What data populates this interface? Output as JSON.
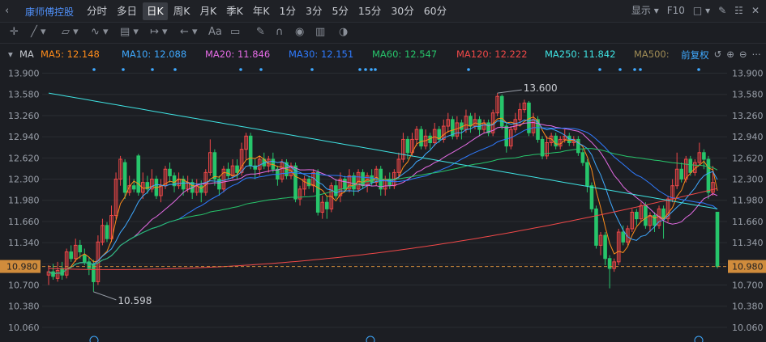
{
  "topbar": {
    "back_icon": "back-arrow-icon",
    "stock_name": "康师傅控股",
    "tabs": [
      "分时",
      "多日",
      "日K",
      "周K",
      "月K",
      "季K",
      "年K",
      "1分",
      "3分",
      "5分",
      "15分",
      "30分",
      "60分"
    ],
    "active_tab": 2,
    "display_label": "显示",
    "f10_label": "F10"
  },
  "ma_legend": {
    "title": "MA",
    "items": [
      {
        "label": "MA5: 12.148",
        "color": "#ff8c1a"
      },
      {
        "label": "MA10: 12.088",
        "color": "#3fa9ff"
      },
      {
        "label": "MA20: 11.846",
        "color": "#e66ce6"
      },
      {
        "label": "MA30: 12.151",
        "color": "#2f7bff"
      },
      {
        "label": "MA60: 12.547",
        "color": "#27c56b"
      },
      {
        "label": "MA120: 12.222",
        "color": "#f04848"
      },
      {
        "label": "MA250: 11.842",
        "color": "#3fe3e3"
      },
      {
        "label": "MA500:",
        "color": "#a08c55"
      }
    ],
    "adjust_label": "前复权"
  },
  "colors": {
    "up": "#f04848",
    "down": "#27c56b",
    "grid": "#2a2d33",
    "axis_text": "#9aa0aa",
    "price_line": "#d08c3c"
  },
  "chart_data": {
    "type": "candlestick",
    "ylim": [
      9.9,
      13.98
    ],
    "y_ticks": [
      "13.900",
      "13.580",
      "13.260",
      "12.940",
      "12.620",
      "12.300",
      "11.980",
      "11.660",
      "11.340",
      "11.020",
      "10.700",
      "10.380",
      "10.060"
    ],
    "y_tick_values": [
      13.9,
      13.58,
      13.26,
      12.94,
      12.62,
      12.3,
      11.98,
      11.66,
      11.34,
      11.02,
      10.7,
      10.38,
      10.06
    ],
    "current_price": "10.980",
    "current_price_value": 10.98,
    "annotations": [
      {
        "text": "13.600",
        "value": 13.6,
        "kind": "high",
        "candle_index": 100
      },
      {
        "text": "10.598",
        "value": 10.598,
        "kind": "low",
        "candle_index": 10
      }
    ],
    "candles": [
      [
        10.85,
        10.9,
        11.0,
        10.7
      ],
      [
        10.9,
        10.83,
        11.02,
        10.78
      ],
      [
        10.8,
        10.92,
        11.05,
        10.75
      ],
      [
        10.95,
        10.85,
        11.05,
        10.78
      ],
      [
        10.85,
        11.2,
        11.25,
        10.8
      ],
      [
        11.2,
        11.1,
        11.3,
        11.05
      ],
      [
        11.1,
        11.3,
        11.4,
        11.05
      ],
      [
        11.3,
        11.2,
        11.38,
        11.1
      ],
      [
        11.15,
        11.05,
        11.25,
        11.0
      ],
      [
        11.05,
        10.95,
        11.12,
        10.85
      ],
      [
        11.0,
        10.75,
        11.08,
        10.6
      ],
      [
        10.75,
        11.35,
        11.45,
        10.7
      ],
      [
        11.35,
        11.6,
        11.7,
        11.3
      ],
      [
        11.6,
        11.4,
        11.65,
        11.35
      ],
      [
        11.4,
        11.75,
        11.9,
        11.35
      ],
      [
        11.75,
        12.3,
        12.4,
        11.7
      ],
      [
        12.3,
        12.6,
        12.65,
        12.2
      ],
      [
        12.55,
        12.1,
        12.6,
        12.0
      ],
      [
        12.1,
        12.2,
        12.35,
        12.05
      ],
      [
        12.2,
        12.15,
        12.3,
        12.1
      ],
      [
        12.65,
        12.1,
        12.68,
        12.05
      ],
      [
        12.1,
        12.25,
        12.4,
        12.0
      ],
      [
        12.25,
        12.15,
        12.35,
        12.08
      ],
      [
        12.15,
        12.3,
        12.45,
        12.1
      ],
      [
        12.3,
        12.05,
        12.35,
        12.0
      ],
      [
        12.05,
        12.2,
        12.3,
        11.95
      ],
      [
        12.2,
        12.45,
        12.5,
        12.15
      ],
      [
        12.45,
        12.35,
        12.55,
        12.25
      ],
      [
        12.35,
        12.2,
        12.4,
        12.1
      ],
      [
        12.2,
        12.3,
        12.4,
        12.15
      ],
      [
        12.3,
        12.15,
        12.35,
        12.05
      ],
      [
        12.15,
        12.25,
        12.35,
        12.1
      ],
      [
        12.25,
        12.1,
        12.3,
        12.0
      ],
      [
        12.1,
        12.2,
        12.3,
        12.05
      ],
      [
        12.2,
        12.1,
        12.28,
        11.95
      ],
      [
        12.1,
        12.4,
        12.45,
        12.05
      ],
      [
        12.4,
        12.7,
        12.9,
        12.35
      ],
      [
        12.7,
        12.3,
        12.75,
        12.2
      ],
      [
        12.3,
        12.15,
        12.35,
        12.05
      ],
      [
        12.15,
        12.45,
        12.5,
        12.1
      ],
      [
        12.45,
        12.35,
        12.55,
        12.3
      ],
      [
        12.35,
        12.5,
        12.6,
        12.3
      ],
      [
        12.5,
        12.4,
        12.6,
        12.3
      ],
      [
        12.4,
        12.75,
        12.85,
        12.35
      ],
      [
        12.75,
        12.95,
        13.0,
        12.6
      ],
      [
        12.95,
        12.5,
        13.0,
        12.45
      ],
      [
        12.5,
        12.45,
        12.6,
        12.3
      ],
      [
        12.45,
        12.6,
        12.65,
        12.35
      ],
      [
        12.6,
        12.5,
        12.7,
        12.45
      ],
      [
        12.5,
        12.6,
        12.65,
        12.4
      ],
      [
        12.6,
        12.45,
        12.7,
        12.4
      ],
      [
        12.45,
        12.3,
        12.5,
        12.2
      ],
      [
        12.3,
        12.55,
        12.6,
        12.25
      ],
      [
        12.55,
        12.35,
        12.6,
        12.3
      ],
      [
        12.35,
        12.5,
        12.55,
        12.3
      ],
      [
        12.5,
        12.0,
        12.55,
        11.95
      ],
      [
        12.0,
        12.15,
        12.2,
        11.9
      ],
      [
        12.15,
        12.3,
        12.35,
        12.05
      ],
      [
        12.3,
        12.2,
        12.35,
        12.15
      ],
      [
        12.2,
        12.4,
        12.45,
        12.1
      ],
      [
        12.4,
        11.8,
        12.45,
        11.75
      ],
      [
        11.8,
        11.95,
        12.05,
        11.7
      ],
      [
        11.95,
        11.85,
        12.05,
        11.7
      ],
      [
        11.85,
        12.2,
        12.25,
        11.8
      ],
      [
        12.2,
        12.05,
        12.3,
        12.0
      ],
      [
        12.05,
        12.3,
        12.4,
        11.95
      ],
      [
        12.3,
        12.15,
        12.35,
        12.1
      ],
      [
        12.15,
        12.35,
        12.45,
        12.1
      ],
      [
        12.35,
        12.15,
        12.4,
        12.05
      ],
      [
        12.15,
        12.4,
        12.45,
        12.1
      ],
      [
        12.4,
        12.2,
        12.45,
        12.15
      ],
      [
        12.2,
        12.35,
        12.4,
        12.1
      ],
      [
        12.35,
        12.25,
        12.45,
        12.2
      ],
      [
        12.25,
        12.45,
        12.5,
        12.2
      ],
      [
        12.45,
        12.15,
        12.5,
        12.05
      ],
      [
        12.15,
        12.3,
        12.35,
        12.05
      ],
      [
        12.3,
        12.2,
        12.4,
        12.15
      ],
      [
        12.2,
        12.4,
        12.45,
        12.15
      ],
      [
        12.4,
        12.6,
        12.7,
        12.3
      ],
      [
        12.6,
        12.9,
        13.0,
        12.55
      ],
      [
        12.9,
        12.7,
        12.95,
        12.6
      ],
      [
        12.7,
        12.9,
        13.0,
        12.65
      ],
      [
        12.9,
        13.05,
        13.1,
        12.8
      ],
      [
        13.05,
        12.8,
        13.1,
        12.75
      ],
      [
        12.8,
        12.95,
        13.05,
        12.75
      ],
      [
        12.95,
        12.85,
        13.0,
        12.75
      ],
      [
        12.85,
        13.05,
        13.15,
        12.8
      ],
      [
        13.05,
        12.9,
        13.1,
        12.85
      ],
      [
        12.9,
        13.1,
        13.2,
        12.85
      ],
      [
        13.1,
        13.2,
        13.3,
        13.0
      ],
      [
        13.2,
        12.95,
        13.25,
        12.9
      ],
      [
        12.95,
        13.15,
        13.25,
        12.9
      ],
      [
        13.15,
        13.05,
        13.2,
        12.9
      ],
      [
        13.05,
        13.25,
        13.35,
        13.0
      ],
      [
        13.25,
        13.1,
        13.3,
        13.0
      ],
      [
        13.1,
        13.2,
        13.3,
        13.05
      ],
      [
        13.2,
        13.05,
        13.25,
        12.95
      ],
      [
        13.05,
        13.15,
        13.2,
        13.0
      ],
      [
        13.15,
        13.0,
        13.2,
        12.95
      ],
      [
        13.0,
        13.3,
        13.35,
        12.95
      ],
      [
        13.3,
        13.55,
        13.6,
        13.25
      ],
      [
        13.55,
        13.1,
        13.58,
        13.05
      ],
      [
        13.1,
        12.8,
        13.15,
        12.7
      ],
      [
        12.8,
        13.05,
        13.1,
        12.75
      ],
      [
        13.05,
        13.2,
        13.3,
        13.0
      ],
      [
        13.2,
        13.35,
        13.45,
        13.15
      ],
      [
        13.35,
        13.45,
        13.5,
        13.3
      ],
      [
        13.45,
        13.0,
        13.48,
        12.95
      ],
      [
        13.0,
        13.2,
        13.3,
        12.95
      ],
      [
        13.2,
        12.9,
        13.25,
        12.85
      ],
      [
        12.9,
        12.65,
        12.95,
        12.6
      ],
      [
        12.65,
        12.85,
        12.95,
        12.6
      ],
      [
        12.85,
        12.95,
        13.0,
        12.8
      ],
      [
        12.95,
        12.8,
        13.0,
        12.75
      ],
      [
        12.8,
        12.9,
        12.95,
        12.75
      ],
      [
        12.9,
        12.95,
        13.05,
        12.85
      ],
      [
        12.95,
        12.85,
        13.0,
        12.8
      ],
      [
        12.85,
        12.9,
        12.95,
        12.8
      ],
      [
        12.9,
        12.7,
        12.95,
        12.65
      ],
      [
        12.7,
        12.55,
        12.75,
        12.5
      ],
      [
        12.55,
        12.2,
        12.6,
        12.1
      ],
      [
        12.2,
        11.85,
        12.25,
        11.8
      ],
      [
        11.85,
        11.3,
        11.9,
        11.25
      ],
      [
        11.3,
        11.45,
        11.5,
        11.15
      ],
      [
        11.45,
        11.1,
        11.5,
        11.0
      ],
      [
        11.1,
        10.95,
        11.15,
        10.65
      ],
      [
        10.95,
        11.05,
        11.1,
        10.9
      ],
      [
        11.05,
        11.5,
        11.55,
        11.0
      ],
      [
        11.5,
        11.35,
        11.6,
        11.3
      ],
      [
        11.35,
        11.55,
        11.6,
        11.3
      ],
      [
        11.55,
        11.8,
        11.85,
        11.5
      ],
      [
        11.8,
        11.7,
        11.85,
        11.6
      ],
      [
        11.7,
        11.9,
        11.95,
        11.65
      ],
      [
        11.9,
        11.6,
        11.95,
        11.55
      ],
      [
        11.6,
        11.75,
        11.8,
        11.5
      ],
      [
        11.75,
        11.6,
        11.8,
        11.5
      ],
      [
        11.6,
        11.85,
        11.9,
        11.55
      ],
      [
        11.85,
        11.7,
        11.9,
        11.4
      ],
      [
        11.7,
        12.0,
        12.05,
        11.65
      ],
      [
        12.0,
        12.2,
        12.3,
        11.95
      ],
      [
        12.2,
        12.45,
        12.7,
        12.15
      ],
      [
        12.45,
        12.3,
        12.55,
        12.25
      ],
      [
        12.3,
        12.6,
        12.65,
        12.25
      ],
      [
        12.6,
        12.4,
        12.65,
        12.35
      ],
      [
        12.4,
        12.55,
        12.6,
        12.35
      ],
      [
        12.55,
        12.7,
        12.85,
        12.5
      ],
      [
        12.7,
        12.6,
        12.75,
        12.45
      ],
      [
        12.6,
        12.1,
        12.65,
        12.0
      ],
      [
        12.1,
        12.25,
        12.5,
        12.05
      ],
      [
        11.8,
        10.98,
        11.8,
        10.95
      ]
    ]
  }
}
